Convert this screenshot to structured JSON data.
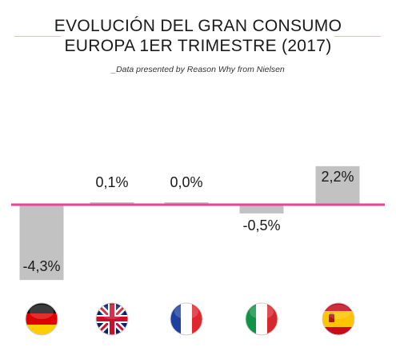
{
  "header": {
    "title_line1": "EVOLUCIÓN DEL GRAN CONSUMO",
    "title_line2": "EUROPA 1ER TRIMESTRE (2017)",
    "subtitle": "_Data presented by Reason Why from Nielsen"
  },
  "colors": {
    "bar": "#c2c2c2",
    "baseline": "#e8449a",
    "rule": "#a8d8ef",
    "text": "#1a1a1a"
  },
  "chart_data": {
    "type": "bar",
    "title": "EVOLUCIÓN DEL GRAN CONSUMO EUROPA 1ER TRIMESTRE (2017)",
    "subtitle": "_Data presented by Reason Why from Nielsen",
    "categories": [
      "germany-flag-icon",
      "uk-flag-icon",
      "france-flag-icon",
      "italy-flag-icon",
      "spain-flag-icon"
    ],
    "values": [
      -4.3,
      0.1,
      0.0,
      -0.5,
      2.2
    ],
    "labels": [
      "-4,3%",
      "0,1%",
      "0,0%",
      "-0,5%",
      "2,2%"
    ],
    "unit": "%",
    "ylim": [
      -4.3,
      2.2
    ],
    "grid": false,
    "legend": "none",
    "baseline_value": 0
  }
}
